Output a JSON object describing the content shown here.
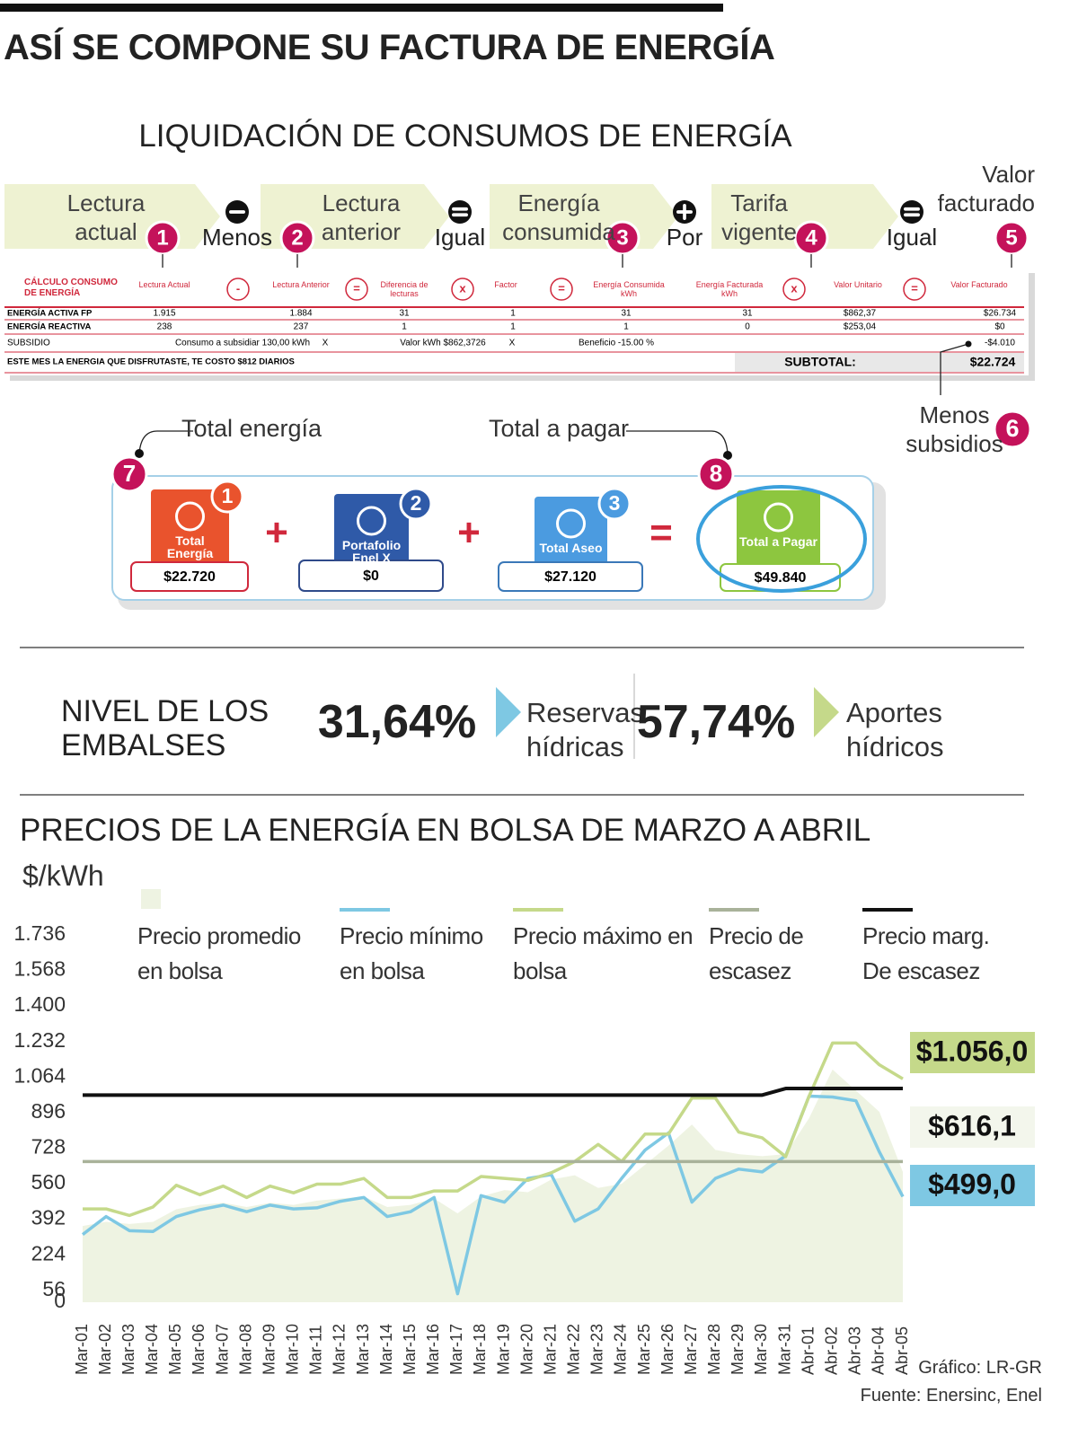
{
  "header": {
    "title": "ASÍ SE COMPONE SU FACTURA DE ENERGÍA"
  },
  "liquidacion": {
    "title": "LIQUIDACIÓN DE CONSUMOS DE ENERGÍA",
    "steps": [
      {
        "label": "Lectura actual",
        "number": "1"
      },
      {
        "label": "Lectura anterior",
        "number": "2"
      },
      {
        "label": "Energía consumida",
        "number": "3"
      },
      {
        "label": "Tarifa vigente",
        "number": "4"
      }
    ],
    "operators": [
      "Menos",
      "Igual",
      "Por",
      "Igual"
    ],
    "result": {
      "label": "Valor facturado",
      "number": "5"
    },
    "subsidy_note": {
      "label": "Menos subsidios",
      "number": "6"
    }
  },
  "invoice": {
    "title": "CÁLCULO CONSUMO DE ENERGÍA",
    "columns": [
      "Lectura Actual",
      "Lectura Anterior",
      "Diferencia de lecturas",
      "Factor",
      "Energía Consumida kWh",
      "Energía Facturada kWh",
      "Valor Unitario",
      "Valor Facturado"
    ],
    "symbols": [
      "-",
      "=",
      "x",
      "=",
      "x",
      "="
    ],
    "rows": [
      [
        "ENERGÍA ACTIVA FP",
        "1.915",
        "1.884",
        "31",
        "1",
        "31",
        "31",
        "$862,37",
        "$26.734"
      ],
      [
        "ENERGÍA REACTIVA",
        "238",
        "237",
        "1",
        "1",
        "1",
        "0",
        "$253,04",
        "$0"
      ]
    ],
    "subsidy": [
      "SUBSIDIO",
      "Consumo a subsidiar 130,00 kWh",
      "X",
      "Valor kWh $862,3726",
      "X",
      "Beneficio -15.00 %",
      "-$4.010"
    ],
    "note": "ESTE MES LA ENERGIA QUE DISFRUTASTE,  TE COSTO $812 DIARIOS",
    "subtotal_label": "SUBTOTAL:",
    "subtotal": "$22.724"
  },
  "totals": {
    "energy_label": "Total energía",
    "energy_number": "7",
    "pay_label": "Total a pagar",
    "pay_number": "8",
    "cards": [
      {
        "label": "Total Energía",
        "number": "1",
        "value": "$22.720"
      },
      {
        "label": "Portafolio Enel X",
        "number": "2",
        "value": "$0"
      },
      {
        "label": "Total Aseo",
        "number": "3",
        "value": "$27.120"
      },
      {
        "label": "Total a Pagar",
        "value": "$49.840"
      }
    ],
    "operators": [
      "+",
      "+",
      "="
    ]
  },
  "embalses": {
    "title": "NIVEL DE LOS EMBALSES",
    "stats": [
      {
        "value": "31,64%",
        "label": "Reservas hídricas"
      },
      {
        "value": "57,74%",
        "label": "Aportes hídricos"
      }
    ]
  },
  "chart_data": {
    "type": "line",
    "title": "PRECIOS DE LA ENERGÍA EN BOLSA DE MARZO A ABRIL",
    "y_label": "$/kWh",
    "categories": [
      "Mar-01",
      "Mar-02",
      "Mar-03",
      "Mar-04",
      "Mar-05",
      "Mar-06",
      "Mar-07",
      "Mar-08",
      "Mar-09",
      "Mar-10",
      "Mar-11",
      "Mar-12",
      "Mar-13",
      "Mar-14",
      "Mar-15",
      "Mar-16",
      "Mar-17",
      "Mar-18",
      "Mar-19",
      "Mar-20",
      "Mar-21",
      "Mar-22",
      "Mar-23",
      "Mar-24",
      "Mar-25",
      "Mar-26",
      "Mar-27",
      "Mar-28",
      "Mar-29",
      "Mar-30",
      "Mar-31",
      "Abr-01",
      "Abr-02",
      "Abr-03",
      "Abr-04",
      "Abr-05"
    ],
    "ylim": [
      0,
      1736
    ],
    "yticks": [
      0,
      56,
      224,
      392,
      560,
      728,
      896,
      {
        "value": 1064,
        "label": "1.064"
      },
      {
        "value": 1232,
        "label": "1.232"
      },
      {
        "value": 1400,
        "label": "1.400"
      },
      {
        "value": 1568,
        "label": "1.568"
      },
      {
        "value": 1736,
        "label": "1.736"
      }
    ],
    "grid": false,
    "series": [
      {
        "name": "Precio promedio en bolsa",
        "color": "#eef3e2",
        "style": "area",
        "values": [
          360,
          380,
          370,
          380,
          440,
          460,
          470,
          450,
          470,
          460,
          480,
          490,
          500,
          450,
          460,
          490,
          420,
          500,
          530,
          520,
          580,
          600,
          540,
          560,
          650,
          740,
          840,
          720,
          700,
          690,
          700,
          870,
          1100,
          1000,
          900,
          616.1
        ],
        "value_labels": [
          null,
          null,
          null,
          null,
          null,
          null,
          null,
          null,
          null,
          null,
          null,
          null,
          null,
          null,
          null,
          null,
          null,
          null,
          null,
          null,
          null,
          null,
          null,
          null,
          null,
          null,
          null,
          null,
          null,
          null,
          null,
          null,
          null,
          null,
          null,
          "$616,1"
        ]
      },
      {
        "name": "Precio mínimo en bolsa",
        "color": "#7ec8e3",
        "style": "line",
        "values": [
          320,
          405,
          338,
          334,
          405,
          437,
          459,
          428,
          459,
          441,
          446,
          477,
          495,
          405,
          428,
          495,
          40,
          504,
          473,
          585,
          603,
          383,
          441,
          585,
          719,
          800,
          473,
          585,
          629,
          616,
          692,
          974,
          970,
          952,
          710,
          499
        ],
        "value_labels": [
          null,
          null,
          null,
          null,
          null,
          null,
          null,
          null,
          null,
          null,
          null,
          null,
          null,
          null,
          null,
          null,
          null,
          null,
          null,
          null,
          null,
          null,
          null,
          null,
          null,
          null,
          null,
          null,
          null,
          null,
          null,
          null,
          null,
          null,
          null,
          "$499,0"
        ]
      },
      {
        "name": "Precio máximo en bolsa",
        "color": "#c5d98a",
        "style": "line",
        "values": [
          441,
          441,
          410,
          450,
          553,
          508,
          549,
          495,
          549,
          517,
          558,
          558,
          585,
          495,
          495,
          526,
          526,
          594,
          585,
          576,
          612,
          665,
          746,
          665,
          795,
          795,
          965,
          965,
          804,
          777,
          688,
          974,
          1225,
          1225,
          1122,
          1056
        ],
        "value_labels": [
          null,
          null,
          null,
          null,
          null,
          null,
          null,
          null,
          null,
          null,
          null,
          null,
          null,
          null,
          null,
          null,
          null,
          null,
          null,
          null,
          null,
          null,
          null,
          null,
          null,
          null,
          null,
          null,
          null,
          null,
          null,
          null,
          null,
          null,
          null,
          "$1.056,0"
        ]
      },
      {
        "name": "Precio de escasez",
        "color": "#a9b29a",
        "style": "line",
        "values": [
          665,
          665,
          665,
          665,
          665,
          665,
          665,
          665,
          665,
          665,
          665,
          665,
          665,
          665,
          665,
          665,
          665,
          665,
          665,
          665,
          665,
          665,
          665,
          665,
          665,
          665,
          665,
          665,
          665,
          665,
          665,
          665,
          665,
          665,
          665,
          665
        ]
      },
      {
        "name": "Precio marg. De escasez",
        "color": "#111111",
        "style": "line",
        "values": [
          979,
          979,
          979,
          979,
          979,
          979,
          979,
          979,
          979,
          979,
          979,
          979,
          979,
          979,
          979,
          979,
          979,
          979,
          979,
          979,
          979,
          979,
          979,
          979,
          979,
          979,
          979,
          979,
          979,
          979,
          1010,
          1010,
          1010,
          1010,
          1010,
          1010
        ]
      }
    ]
  },
  "credits": {
    "graphic": "Gráfico: LR-GR",
    "source": "Fuente: Enersinc, Enel"
  }
}
